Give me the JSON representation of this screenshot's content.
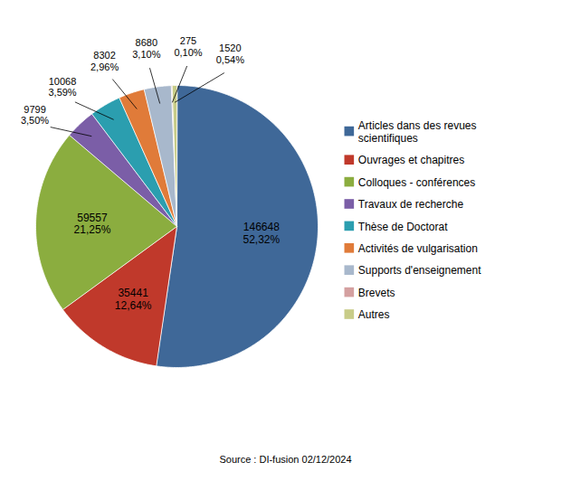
{
  "chart_data": {
    "type": "pie",
    "categories": [
      "Articles dans des revues\nscientifiques",
      "Ouvrages et chapitres",
      "Colloques - conférences",
      "Travaux de recherche",
      "Thèse de Doctorat",
      "Activités de vulgarisation",
      "Supports d'enseignement",
      "Brevets",
      "Autres"
    ],
    "values": [
      146648,
      35441,
      59557,
      9799,
      10068,
      8302,
      8680,
      275,
      1520
    ],
    "shares": [
      52.32,
      12.64,
      21.25,
      3.5,
      3.59,
      2.96,
      3.1,
      0.1,
      0.54
    ],
    "share_labels": [
      "52,32%",
      "12,64%",
      "21,25%",
      "3,50%",
      "3,59%",
      "2,96%",
      "3,10%",
      "0,10%",
      "0,54%"
    ],
    "colors": [
      "#3F6898",
      "#C0392B",
      "#8BAD3F",
      "#7B5EA7",
      "#2B9EAF",
      "#E07B39",
      "#A8B8CC",
      "#D4A0A0",
      "#C8CC88"
    ],
    "data_labels": true,
    "legend": "right",
    "caption": "Source : DI-fusion 02/12/2024"
  }
}
